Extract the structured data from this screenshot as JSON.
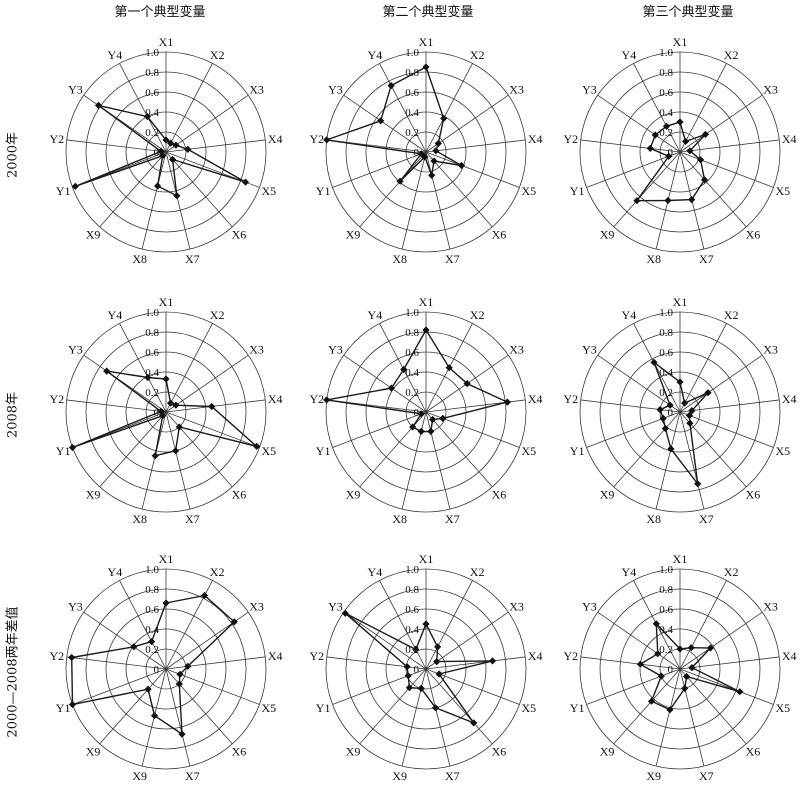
{
  "column_titles": [
    "第一个典型变量",
    "第二个典型变量",
    "第三个典型变量"
  ],
  "row_labels": [
    "2000年",
    "2008年",
    "2000—2008两年差值"
  ],
  "colors": {
    "grid": "#3a3a3a",
    "series": "#1a1a1a",
    "marker": "#111111"
  },
  "chart_data": [
    {
      "type": "radar",
      "axes": [
        "X1",
        "X2",
        "X3",
        "X4",
        "X5",
        "X6",
        "X7",
        "X8",
        "X9",
        "Y1",
        "Y2",
        "Y3",
        "Y4"
      ],
      "tick_labels": [
        "0",
        "0.2",
        "0.4",
        "0.6",
        "0.8",
        "1.0"
      ],
      "range": [
        0,
        1
      ],
      "values": [
        0.12,
        0.1,
        0.12,
        0.22,
        0.85,
        0.1,
        0.45,
        0.35,
        0.05,
        0.97,
        0.05,
        0.82,
        0.4
      ]
    },
    {
      "type": "radar",
      "axes": [
        "X1",
        "X2",
        "X3",
        "X4",
        "X5",
        "X6",
        "X7",
        "X8",
        "X9",
        "Y1",
        "Y2",
        "Y3",
        "Y4"
      ],
      "tick_labels": [
        "0",
        "0.2",
        "0.4",
        "0.6",
        "0.8",
        "1.0"
      ],
      "range": [
        0,
        1
      ],
      "values": [
        0.85,
        0.38,
        0.15,
        0.1,
        0.38,
        0.12,
        0.24,
        0.05,
        0.39,
        0.05,
        1.0,
        0.55,
        0.75
      ]
    },
    {
      "type": "radar",
      "axes": [
        "X1",
        "X2",
        "X3",
        "X4",
        "X5",
        "X6",
        "X7",
        "X8",
        "X9",
        "Y1",
        "Y2",
        "Y3",
        "Y4"
      ],
      "tick_labels": [
        "0",
        "0.2",
        "0.4",
        "0.6",
        "0.8",
        "1.0"
      ],
      "range": [
        0,
        1
      ],
      "values": [
        0.3,
        0.12,
        0.31,
        0.1,
        0.22,
        0.37,
        0.49,
        0.5,
        0.65,
        0.12,
        0.3,
        0.3,
        0.29
      ]
    },
    {
      "type": "radar",
      "axes": [
        "X1",
        "X2",
        "X3",
        "X4",
        "X5",
        "X6",
        "X7",
        "X8",
        "X9",
        "Y1",
        "Y2",
        "Y3",
        "Y4"
      ],
      "tick_labels": [
        "0",
        "0.2",
        "0.4",
        "0.6",
        "0.8",
        "1.0"
      ],
      "range": [
        0,
        1
      ],
      "values": [
        0.33,
        0.1,
        0.12,
        0.46,
        0.97,
        0.2,
        0.4,
        0.45,
        0.05,
        1.0,
        0.05,
        0.72,
        0.39
      ]
    },
    {
      "type": "radar",
      "axes": [
        "X1",
        "X2",
        "X3",
        "X4",
        "X5",
        "X6",
        "X7",
        "X8",
        "X9",
        "Y1",
        "Y2",
        "Y3",
        "Y4"
      ],
      "tick_labels": [
        "0",
        "0.2",
        "0.4",
        "0.6",
        "0.8",
        "1.0"
      ],
      "range": [
        0,
        1
      ],
      "values": [
        0.82,
        0.5,
        0.5,
        0.82,
        0.18,
        0.1,
        0.2,
        0.2,
        0.2,
        0.05,
        1.0,
        0.42,
        0.48
      ]
    },
    {
      "type": "radar",
      "axes": [
        "X1",
        "X2",
        "X3",
        "X4",
        "X5",
        "X6",
        "X7",
        "X8",
        "X9",
        "Y1",
        "Y2",
        "Y3",
        "Y4"
      ],
      "tick_labels": [
        "0",
        "0.2",
        "0.4",
        "0.6",
        "0.8",
        "1.0"
      ],
      "range": [
        0,
        1
      ],
      "values": [
        0.3,
        0.1,
        0.34,
        0.12,
        0.1,
        0.15,
        0.74,
        0.38,
        0.22,
        0.18,
        0.2,
        0.12,
        0.56
      ]
    },
    {
      "type": "radar",
      "axes": [
        "X1",
        "X2",
        "X3",
        "X4",
        "X5",
        "X6",
        "X7",
        "X9",
        "X9",
        "Y1",
        "Y2",
        "Y3",
        "Y4"
      ],
      "tick_labels": [
        "0",
        "0.2",
        "0.4",
        "0.6",
        "0.8",
        "1.0"
      ],
      "range": [
        0,
        1
      ],
      "values": [
        0.66,
        0.83,
        0.83,
        0.22,
        0.15,
        0.2,
        0.67,
        0.48,
        0.27,
        1.0,
        0.95,
        0.39,
        0.31
      ]
    },
    {
      "type": "radar",
      "axes": [
        "X1",
        "X2",
        "X3",
        "X4",
        "X5",
        "X6",
        "X7",
        "X9",
        "X9",
        "Y1",
        "Y2",
        "Y3",
        "Y4"
      ],
      "tick_labels": [
        "0",
        "0.2",
        "0.4",
        "0.6",
        "0.8",
        "1.0"
      ],
      "range": [
        0,
        1
      ],
      "values": [
        0.45,
        0.25,
        0.13,
        0.67,
        0.14,
        0.72,
        0.4,
        0.2,
        0.25,
        0.19,
        0.19,
        0.98,
        0.22
      ]
    },
    {
      "type": "radar",
      "axes": [
        "X1",
        "X2",
        "X3",
        "X4",
        "X5",
        "X6",
        "X7",
        "X9",
        "X9",
        "Y1",
        "Y2",
        "Y3",
        "Y4"
      ],
      "tick_labels": [
        "0",
        "0.2",
        "0.4",
        "0.6",
        "0.8",
        "1.0"
      ],
      "range": [
        0,
        1
      ],
      "values": [
        0.2,
        0.24,
        0.37,
        0.12,
        0.64,
        0.1,
        0.2,
        0.42,
        0.43,
        0.2,
        0.4,
        0.27,
        0.51
      ]
    }
  ]
}
